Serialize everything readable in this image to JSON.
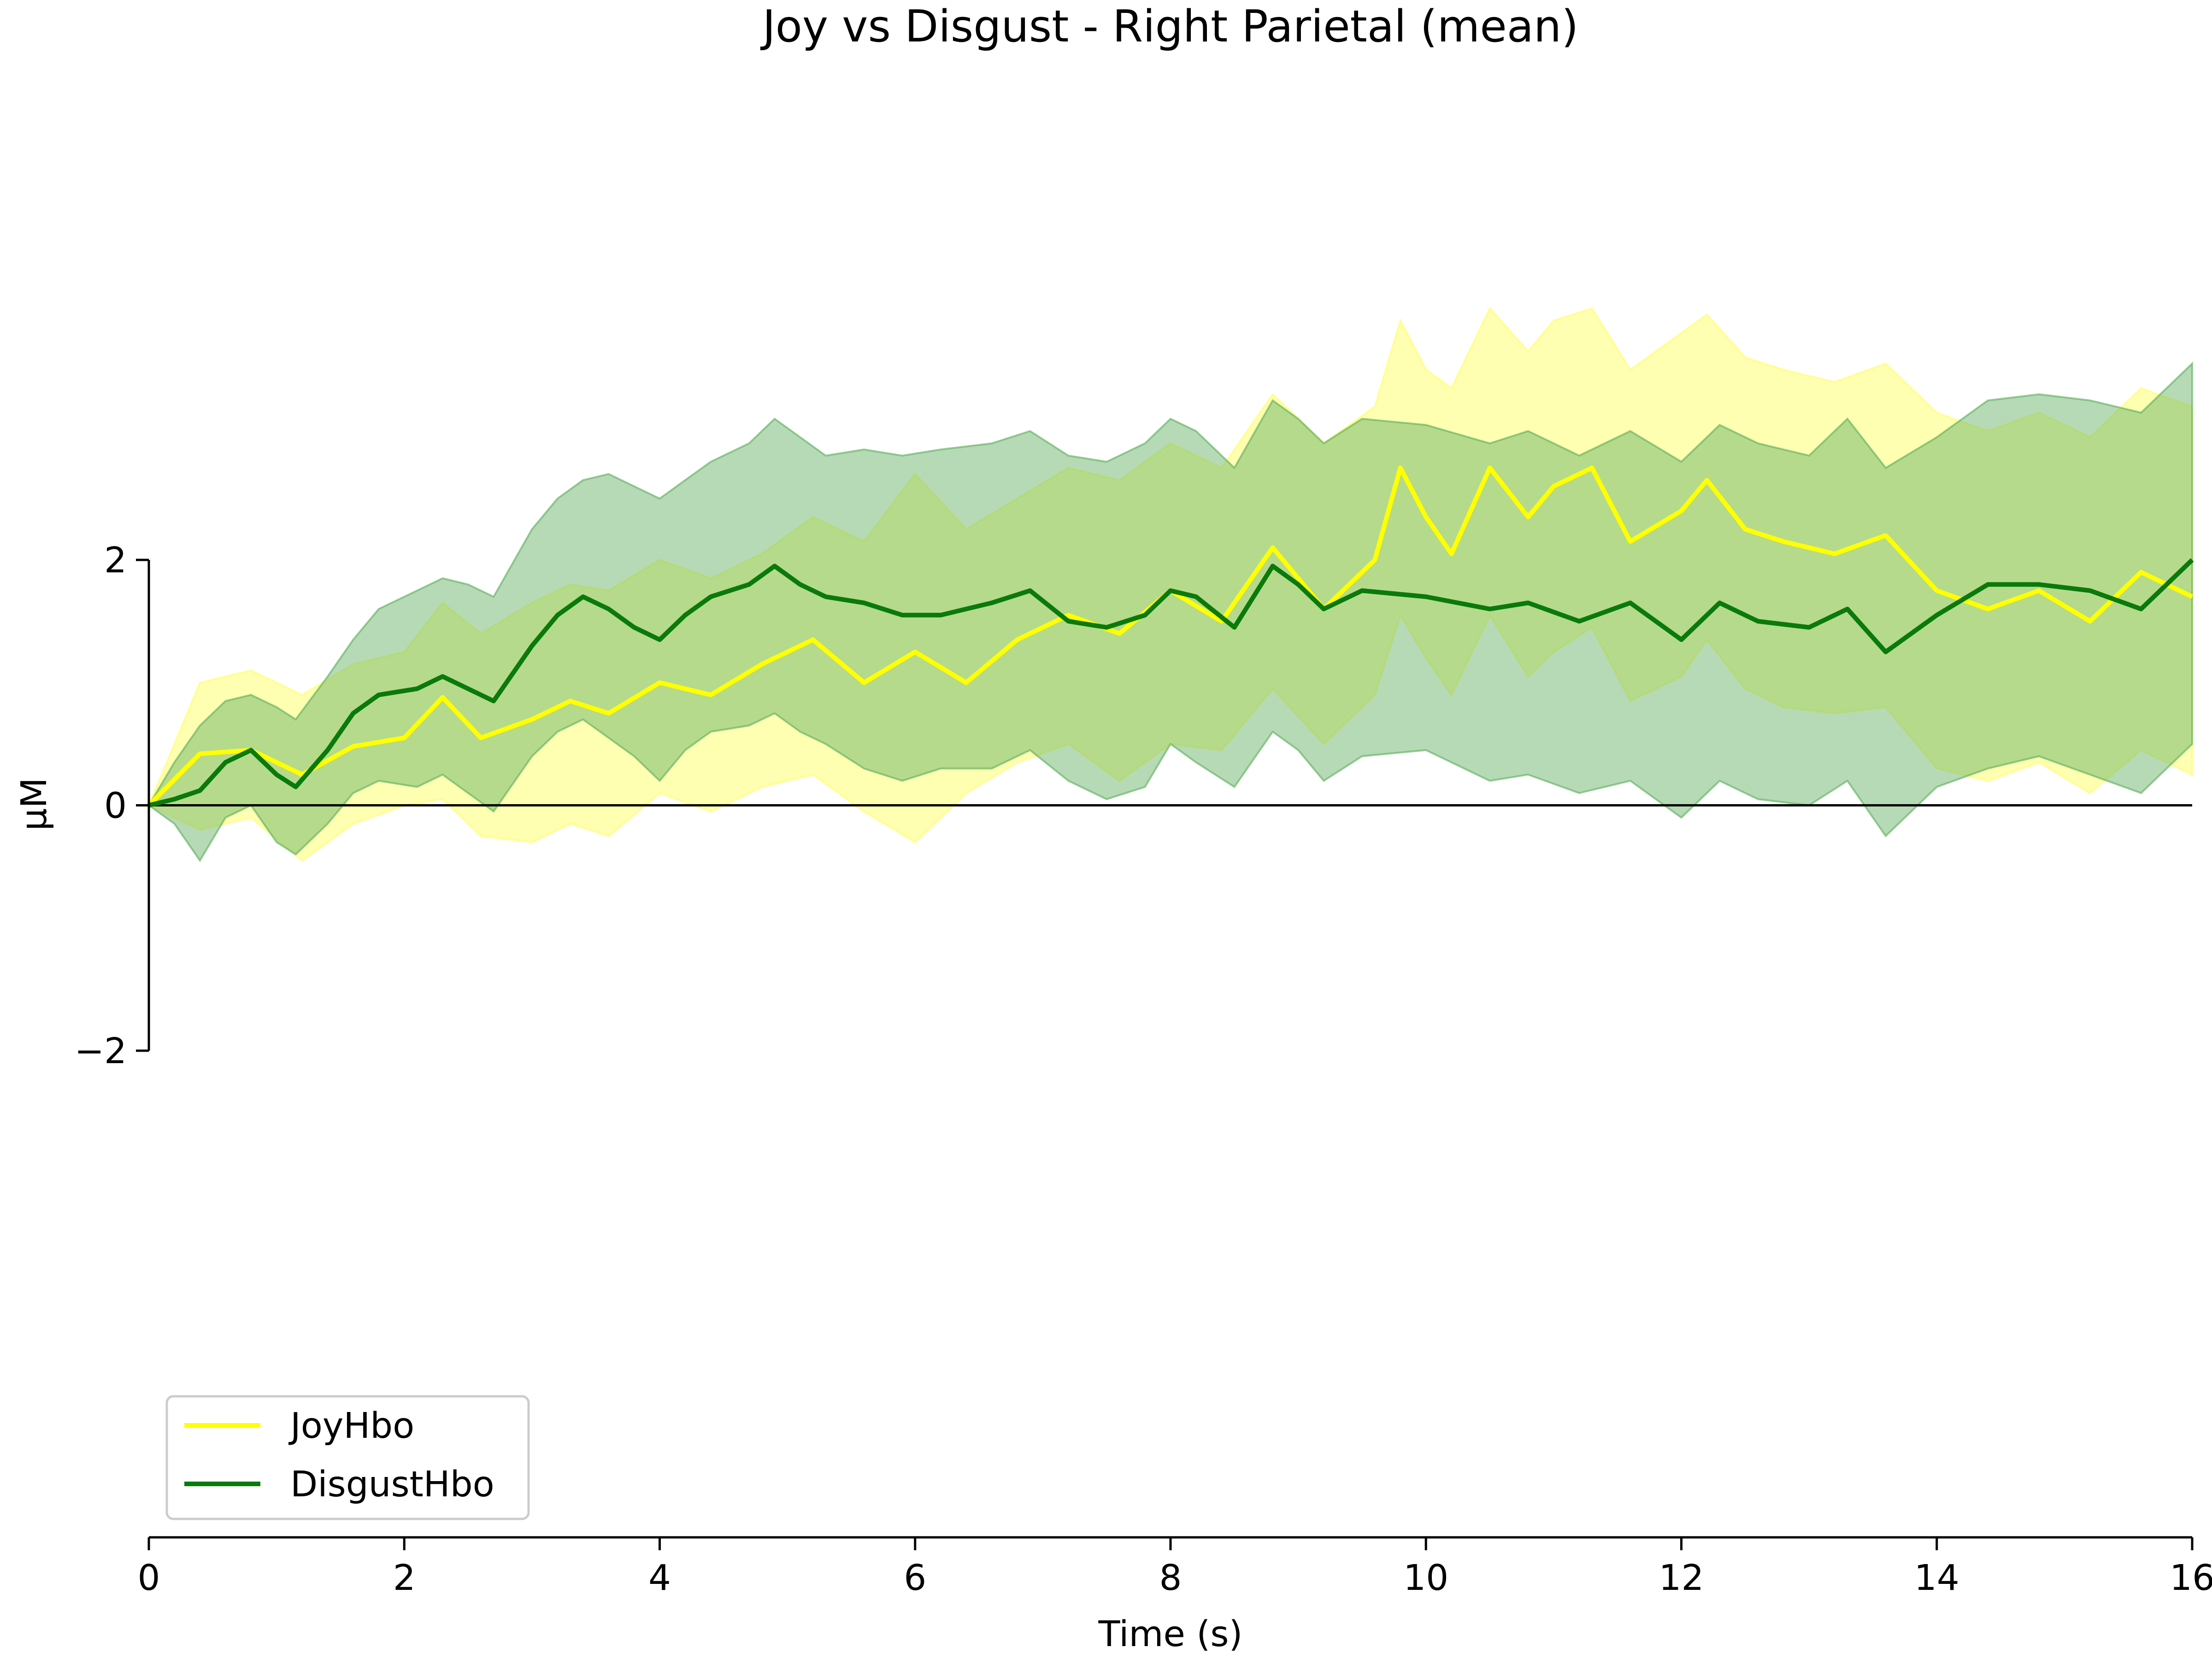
{
  "chart_data": {
    "type": "line",
    "title": "Joy vs Disgust - Right Parietal (mean)",
    "xlabel": "Time (s)",
    "ylabel": "µM",
    "xlim": [
      0,
      16
    ],
    "ylim": [
      -2,
      2
    ],
    "x_ticks": [
      {
        "value": 0,
        "label": "0"
      },
      {
        "value": 2,
        "label": "2"
      },
      {
        "value": 4,
        "label": "4"
      },
      {
        "value": 6,
        "label": "6"
      },
      {
        "value": 8,
        "label": "8"
      },
      {
        "value": 10,
        "label": "10"
      },
      {
        "value": 12,
        "label": "12"
      },
      {
        "value": 14,
        "label": "14"
      },
      {
        "value": 16,
        "label": "16"
      }
    ],
    "y_ticks": [
      {
        "value": -2,
        "label": "−2"
      },
      {
        "value": 0,
        "label": "0"
      },
      {
        "value": 2,
        "label": "2"
      }
    ],
    "zero_line": true,
    "grid": false,
    "legend_position": "bottom-left",
    "series": [
      {
        "name": "JoyHbo",
        "color": "#ffff00",
        "band_color": "#ffff66",
        "x": [
          0,
          0.4,
          0.8,
          1.2,
          1.6,
          2.0,
          2.3,
          2.6,
          3.0,
          3.3,
          3.6,
          4.0,
          4.4,
          4.8,
          5.2,
          5.6,
          6.0,
          6.4,
          6.8,
          7.2,
          7.6,
          8.0,
          8.4,
          8.8,
          9.2,
          9.6,
          9.8,
          10.0,
          10.2,
          10.5,
          10.8,
          11.0,
          11.3,
          11.6,
          12.0,
          12.2,
          12.5,
          12.8,
          13.2,
          13.6,
          14.0,
          14.4,
          14.8,
          15.2,
          15.6,
          16.0
        ],
        "mean": [
          0.0,
          0.42,
          0.45,
          0.25,
          0.48,
          0.55,
          0.88,
          0.55,
          0.7,
          0.85,
          0.75,
          1.0,
          0.9,
          1.15,
          1.35,
          1.0,
          1.25,
          1.0,
          1.35,
          1.55,
          1.4,
          1.75,
          1.5,
          2.1,
          1.6,
          2.0,
          2.75,
          2.35,
          2.05,
          2.75,
          2.35,
          2.6,
          2.75,
          2.15,
          2.4,
          2.65,
          2.25,
          2.15,
          2.05,
          2.2,
          1.75,
          1.6,
          1.75,
          1.5,
          1.9,
          1.7
        ],
        "lower": [
          0.0,
          -0.2,
          -0.1,
          -0.45,
          -0.15,
          0.0,
          0.05,
          -0.25,
          -0.3,
          -0.15,
          -0.25,
          0.1,
          -0.05,
          0.15,
          0.25,
          -0.05,
          -0.3,
          0.1,
          0.35,
          0.5,
          0.2,
          0.5,
          0.45,
          0.95,
          0.5,
          0.9,
          1.55,
          1.2,
          0.9,
          1.55,
          1.05,
          1.25,
          1.45,
          0.85,
          1.05,
          1.35,
          0.95,
          0.8,
          0.75,
          0.8,
          0.3,
          0.2,
          0.35,
          0.1,
          0.45,
          0.25
        ],
        "upper": [
          0.0,
          1.0,
          1.1,
          0.9,
          1.15,
          1.25,
          1.65,
          1.4,
          1.65,
          1.8,
          1.75,
          2.0,
          1.85,
          2.05,
          2.35,
          2.15,
          2.7,
          2.25,
          2.5,
          2.75,
          2.65,
          2.95,
          2.75,
          3.35,
          2.95,
          3.25,
          3.95,
          3.55,
          3.4,
          4.05,
          3.7,
          3.95,
          4.05,
          3.55,
          3.85,
          4.0,
          3.65,
          3.55,
          3.45,
          3.6,
          3.2,
          3.05,
          3.2,
          3.0,
          3.4,
          3.25
        ]
      },
      {
        "name": "DisgustHbo",
        "color": "#0a7a0a",
        "band_color": "#5aad5a",
        "x": [
          0,
          0.2,
          0.4,
          0.6,
          0.8,
          1.0,
          1.15,
          1.4,
          1.6,
          1.8,
          2.1,
          2.3,
          2.5,
          2.7,
          3.0,
          3.2,
          3.4,
          3.6,
          3.8,
          4.0,
          4.2,
          4.4,
          4.7,
          4.9,
          5.1,
          5.3,
          5.6,
          5.9,
          6.2,
          6.6,
          6.9,
          7.2,
          7.5,
          7.8,
          8.0,
          8.2,
          8.5,
          8.8,
          9.0,
          9.2,
          9.5,
          10.0,
          10.5,
          10.8,
          11.2,
          11.6,
          12.0,
          12.3,
          12.6,
          13.0,
          13.3,
          13.6,
          14.0,
          14.4,
          14.8,
          15.2,
          15.6,
          16.0
        ],
        "mean": [
          0.0,
          0.05,
          0.12,
          0.35,
          0.45,
          0.25,
          0.15,
          0.45,
          0.75,
          0.9,
          0.95,
          1.05,
          0.95,
          0.85,
          1.3,
          1.55,
          1.7,
          1.6,
          1.45,
          1.35,
          1.55,
          1.7,
          1.8,
          1.95,
          1.8,
          1.7,
          1.65,
          1.55,
          1.55,
          1.65,
          1.75,
          1.5,
          1.45,
          1.55,
          1.75,
          1.7,
          1.45,
          1.95,
          1.8,
          1.6,
          1.75,
          1.7,
          1.6,
          1.65,
          1.5,
          1.65,
          1.35,
          1.65,
          1.5,
          1.45,
          1.6,
          1.25,
          1.55,
          1.8,
          1.8,
          1.75,
          1.6,
          2.0
        ],
        "lower": [
          0.0,
          -0.15,
          -0.45,
          -0.1,
          0.0,
          -0.3,
          -0.4,
          -0.15,
          0.1,
          0.2,
          0.15,
          0.25,
          0.1,
          -0.05,
          0.4,
          0.6,
          0.7,
          0.55,
          0.4,
          0.2,
          0.45,
          0.6,
          0.65,
          0.75,
          0.6,
          0.5,
          0.3,
          0.2,
          0.3,
          0.3,
          0.45,
          0.2,
          0.05,
          0.15,
          0.5,
          0.35,
          0.15,
          0.6,
          0.45,
          0.2,
          0.4,
          0.45,
          0.2,
          0.25,
          0.1,
          0.2,
          -0.1,
          0.2,
          0.05,
          0.0,
          0.2,
          -0.25,
          0.15,
          0.3,
          0.4,
          0.25,
          0.1,
          0.5
        ],
        "upper": [
          0.0,
          0.35,
          0.65,
          0.85,
          0.9,
          0.8,
          0.7,
          1.05,
          1.35,
          1.6,
          1.75,
          1.85,
          1.8,
          1.7,
          2.25,
          2.5,
          2.65,
          2.7,
          2.6,
          2.5,
          2.65,
          2.8,
          2.95,
          3.15,
          3.0,
          2.85,
          2.9,
          2.85,
          2.9,
          2.95,
          3.05,
          2.85,
          2.8,
          2.95,
          3.15,
          3.05,
          2.75,
          3.3,
          3.15,
          2.95,
          3.15,
          3.1,
          2.95,
          3.05,
          2.85,
          3.05,
          2.8,
          3.1,
          2.95,
          2.85,
          3.15,
          2.75,
          3.0,
          3.3,
          3.35,
          3.3,
          3.2,
          3.6
        ]
      }
    ]
  }
}
